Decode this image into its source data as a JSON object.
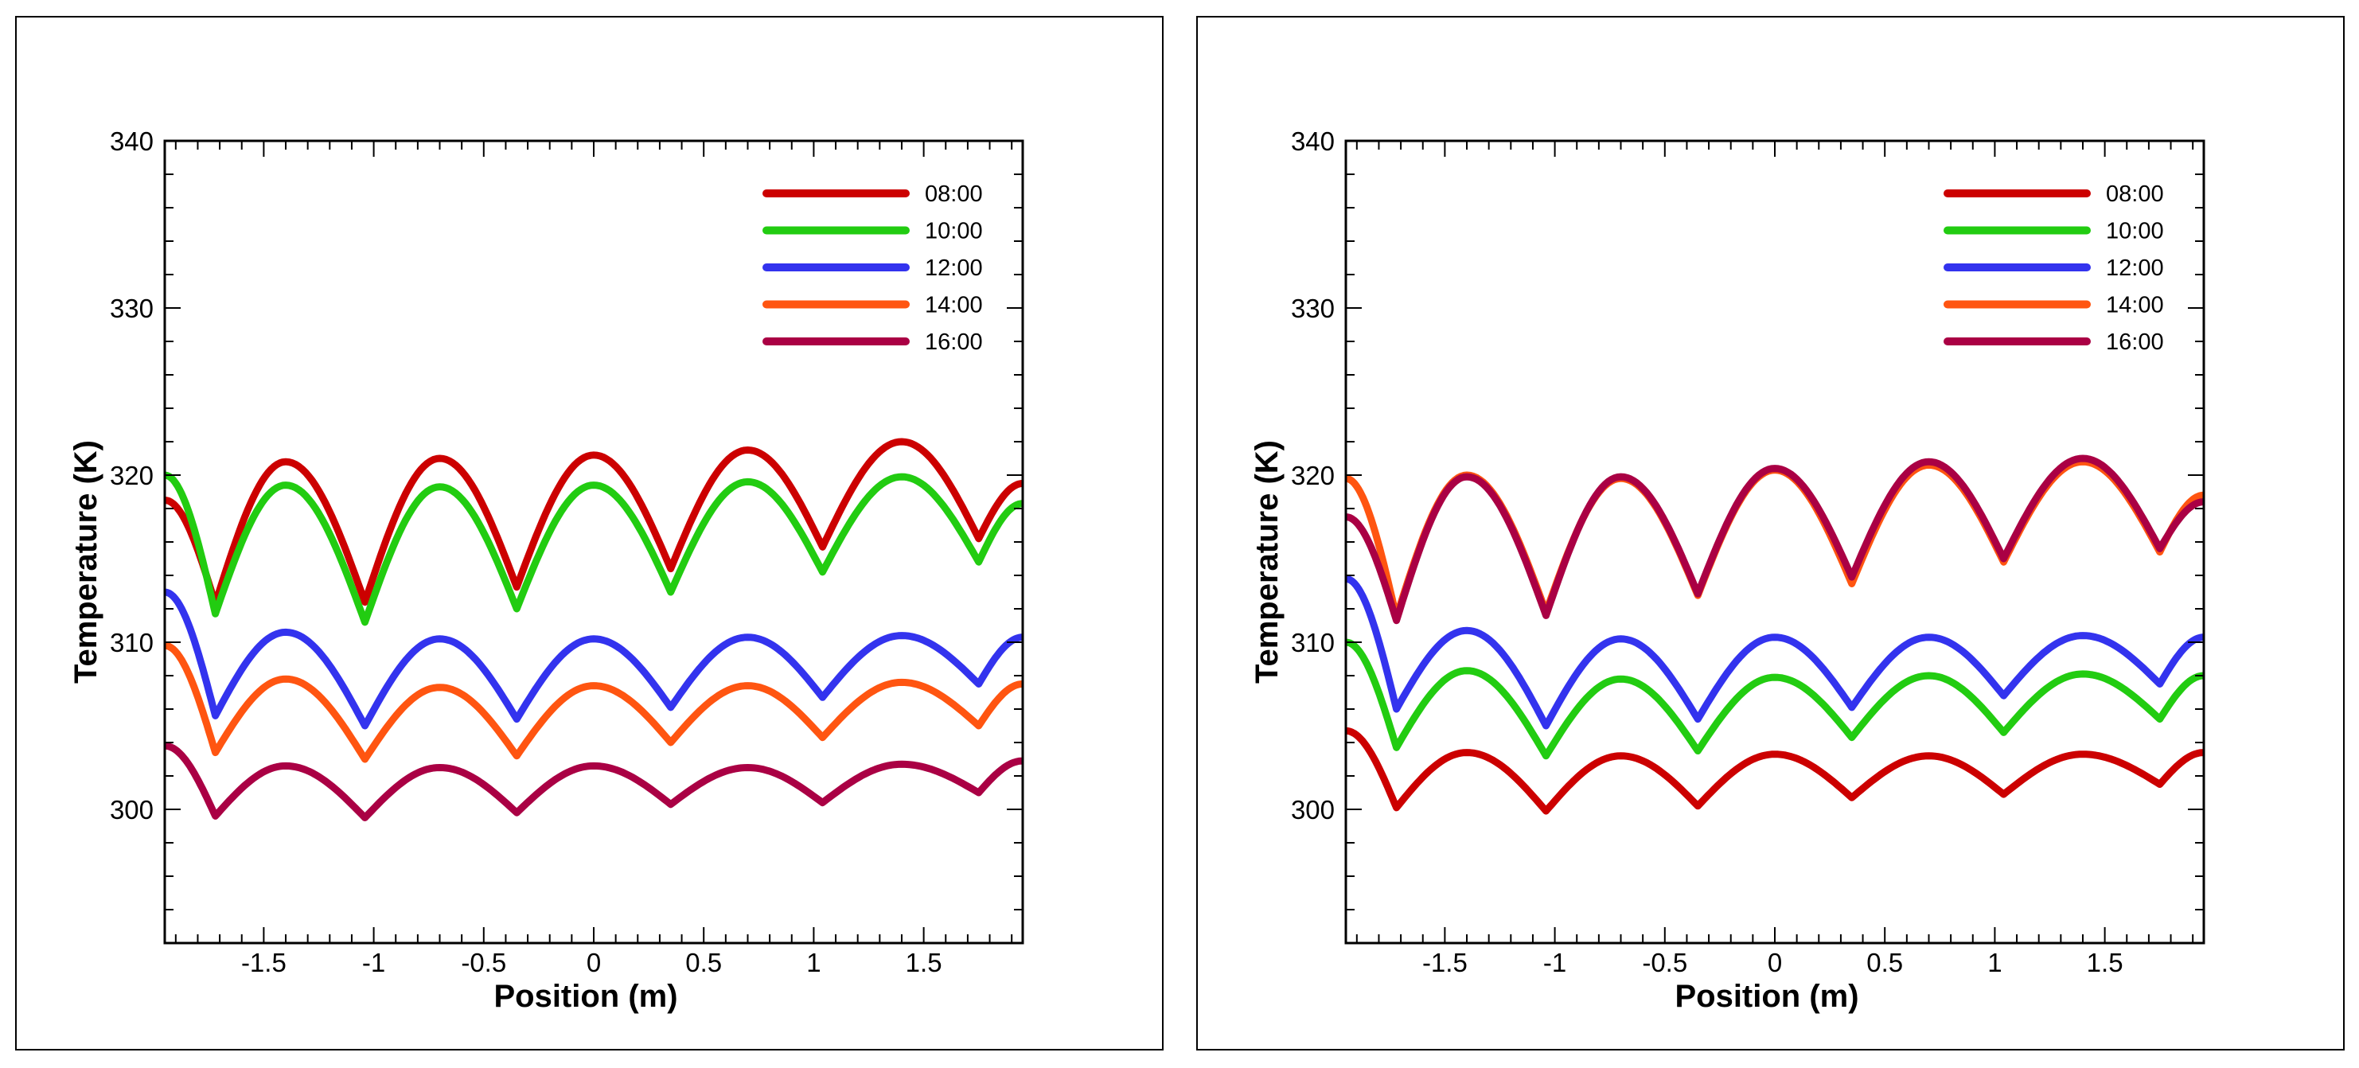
{
  "chart_data": [
    {
      "type": "line",
      "xlabel": "Position (m)",
      "ylabel": "Temperature (K)",
      "xlim": [
        -1.95,
        1.95
      ],
      "ylim": [
        292,
        340
      ],
      "yticks": [
        300,
        310,
        320,
        330,
        340
      ],
      "xticks": [
        -1.5,
        -1,
        -0.5,
        0,
        0.5,
        1,
        1.5
      ],
      "xtick_labels": [
        "-1.5",
        "-1",
        "-0.5",
        "0",
        "0.5",
        "1",
        "1.5"
      ],
      "legend_position": "top-right",
      "grid": false,
      "series": [
        {
          "name": "08:00",
          "color": "#cc0000",
          "start": 318.5,
          "peaks": [
            [
              -1.4,
              320.8
            ],
            [
              -0.7,
              321.0
            ],
            [
              0.0,
              321.2
            ],
            [
              0.7,
              321.5
            ],
            [
              1.4,
              322.0
            ]
          ],
          "valleys": [
            [
              -1.72,
              312.3
            ],
            [
              -1.04,
              312.4
            ],
            [
              -0.35,
              313.3
            ],
            [
              0.35,
              314.4
            ],
            [
              1.04,
              315.7
            ],
            [
              1.75,
              316.2
            ]
          ],
          "end": 319.5
        },
        {
          "name": "10:00",
          "color": "#22cc11",
          "start": 320.0,
          "peaks": [
            [
              -1.4,
              319.4
            ],
            [
              -0.7,
              319.3
            ],
            [
              0.0,
              319.4
            ],
            [
              0.7,
              319.6
            ],
            [
              1.4,
              319.9
            ]
          ],
          "valleys": [
            [
              -1.72,
              311.7
            ],
            [
              -1.04,
              311.2
            ],
            [
              -0.35,
              312.0
            ],
            [
              0.35,
              313.0
            ],
            [
              1.04,
              314.2
            ],
            [
              1.75,
              314.8
            ]
          ],
          "end": 318.3
        },
        {
          "name": "12:00",
          "color": "#3333ee",
          "start": 313.0,
          "peaks": [
            [
              -1.4,
              310.6
            ],
            [
              -0.7,
              310.2
            ],
            [
              0.0,
              310.2
            ],
            [
              0.7,
              310.3
            ],
            [
              1.4,
              310.4
            ]
          ],
          "valleys": [
            [
              -1.72,
              305.6
            ],
            [
              -1.04,
              305.0
            ],
            [
              -0.35,
              305.4
            ],
            [
              0.35,
              306.1
            ],
            [
              1.04,
              306.7
            ],
            [
              1.75,
              307.5
            ]
          ],
          "end": 310.3
        },
        {
          "name": "14:00",
          "color": "#ff5511",
          "start": 309.8,
          "peaks": [
            [
              -1.4,
              307.8
            ],
            [
              -0.7,
              307.3
            ],
            [
              0.0,
              307.4
            ],
            [
              0.7,
              307.4
            ],
            [
              1.4,
              307.6
            ]
          ],
          "valleys": [
            [
              -1.72,
              303.4
            ],
            [
              -1.04,
              303.0
            ],
            [
              -0.35,
              303.2
            ],
            [
              0.35,
              304.0
            ],
            [
              1.04,
              304.3
            ],
            [
              1.75,
              305.0
            ]
          ],
          "end": 307.5
        },
        {
          "name": "16:00",
          "color": "#aa0044",
          "start": 303.8,
          "peaks": [
            [
              -1.4,
              302.6
            ],
            [
              -0.7,
              302.5
            ],
            [
              0.0,
              302.6
            ],
            [
              0.7,
              302.5
            ],
            [
              1.4,
              302.7
            ]
          ],
          "valleys": [
            [
              -1.72,
              299.6
            ],
            [
              -1.04,
              299.5
            ],
            [
              -0.35,
              299.8
            ],
            [
              0.35,
              300.3
            ],
            [
              1.04,
              300.4
            ],
            [
              1.75,
              301.0
            ]
          ],
          "end": 302.9
        }
      ]
    },
    {
      "type": "line",
      "xlabel": "Position (m)",
      "ylabel": "Temperature (K)",
      "xlim": [
        -1.95,
        1.95
      ],
      "ylim": [
        292,
        340
      ],
      "yticks": [
        300,
        310,
        320,
        330,
        340
      ],
      "xticks": [
        -1.5,
        -1,
        -0.5,
        0,
        0.5,
        1,
        1.5
      ],
      "xtick_labels": [
        "-1.5",
        "-1",
        "-0.5",
        "0",
        "0.5",
        "1",
        "1.5"
      ],
      "legend_position": "top-right",
      "grid": false,
      "series": [
        {
          "name": "08:00",
          "color": "#cc0000",
          "start": 304.7,
          "peaks": [
            [
              -1.4,
              303.4
            ],
            [
              -0.7,
              303.2
            ],
            [
              0.0,
              303.3
            ],
            [
              0.7,
              303.2
            ],
            [
              1.4,
              303.3
            ]
          ],
          "valleys": [
            [
              -1.72,
              300.1
            ],
            [
              -1.04,
              299.9
            ],
            [
              -0.35,
              300.2
            ],
            [
              0.35,
              300.7
            ],
            [
              1.04,
              300.9
            ],
            [
              1.75,
              301.5
            ]
          ],
          "end": 303.4
        },
        {
          "name": "10:00",
          "color": "#22cc11",
          "start": 310.0,
          "peaks": [
            [
              -1.4,
              308.3
            ],
            [
              -0.7,
              307.8
            ],
            [
              0.0,
              307.9
            ],
            [
              0.7,
              308.0
            ],
            [
              1.4,
              308.1
            ]
          ],
          "valleys": [
            [
              -1.72,
              303.7
            ],
            [
              -1.04,
              303.2
            ],
            [
              -0.35,
              303.5
            ],
            [
              0.35,
              304.3
            ],
            [
              1.04,
              304.6
            ],
            [
              1.75,
              305.4
            ]
          ],
          "end": 308.0
        },
        {
          "name": "12:00",
          "color": "#3333ee",
          "start": 313.8,
          "peaks": [
            [
              -1.4,
              310.7
            ],
            [
              -0.7,
              310.2
            ],
            [
              0.0,
              310.3
            ],
            [
              0.7,
              310.3
            ],
            [
              1.4,
              310.4
            ]
          ],
          "valleys": [
            [
              -1.72,
              306.0
            ],
            [
              -1.04,
              305.0
            ],
            [
              -0.35,
              305.4
            ],
            [
              0.35,
              306.1
            ],
            [
              1.04,
              306.8
            ],
            [
              1.75,
              307.5
            ]
          ],
          "end": 310.3
        },
        {
          "name": "14:00",
          "color": "#ff5511",
          "start": 319.8,
          "peaks": [
            [
              -1.4,
              320.0
            ],
            [
              -0.7,
              319.8
            ],
            [
              0.0,
              320.3
            ],
            [
              0.7,
              320.6
            ],
            [
              1.4,
              320.8
            ]
          ],
          "valleys": [
            [
              -1.72,
              311.5
            ],
            [
              -1.04,
              311.8
            ],
            [
              -0.35,
              312.8
            ],
            [
              0.35,
              313.5
            ],
            [
              1.04,
              314.8
            ],
            [
              1.75,
              315.4
            ]
          ],
          "end": 318.8
        },
        {
          "name": "16:00",
          "color": "#aa0044",
          "start": 317.5,
          "peaks": [
            [
              -1.4,
              319.9
            ],
            [
              -0.7,
              319.9
            ],
            [
              0.0,
              320.4
            ],
            [
              0.7,
              320.8
            ],
            [
              1.4,
              321.0
            ]
          ],
          "valleys": [
            [
              -1.72,
              311.3
            ],
            [
              -1.04,
              311.6
            ],
            [
              -0.35,
              312.9
            ],
            [
              0.35,
              313.9
            ],
            [
              1.04,
              315.0
            ],
            [
              1.75,
              315.6
            ]
          ],
          "end": 318.4
        }
      ]
    }
  ]
}
